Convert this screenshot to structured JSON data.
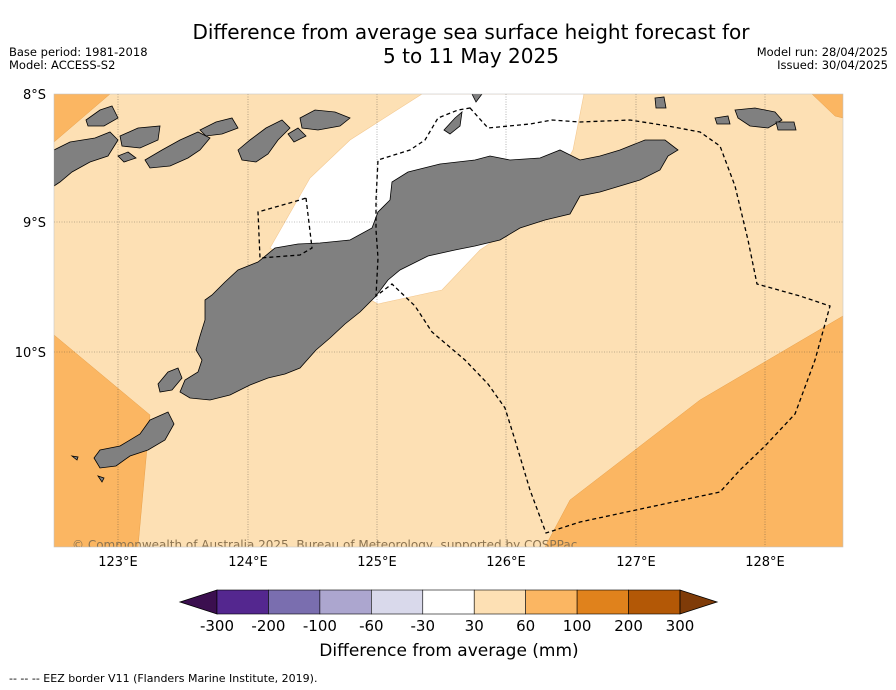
{
  "title_line1": "Difference from average sea surface height forecast for",
  "title_line2": "5 to 11 May 2025",
  "base_period": "Base period: 1981-2018",
  "model": "Model: ACCESS-S2",
  "model_run": "Model run: 28/04/2025",
  "issued": "Issued: 30/04/2025",
  "map": {
    "lat_labels": [
      "8°S",
      "9°S",
      "10°S"
    ],
    "lon_labels": [
      "123°E",
      "124°E",
      "125°E",
      "126°E",
      "127°E",
      "128°E"
    ],
    "copyright": "© Commonwealth of Australia 2025, Bureau of Meteorology, supported by COSPPac"
  },
  "colorbar": {
    "title": "Difference from average (mm)",
    "ticks": [
      "-300",
      "-200",
      "-100",
      "-60",
      "-30",
      "30",
      "60",
      "100",
      "200",
      "300"
    ],
    "colors": [
      "#3b0f4f",
      "#54278f",
      "#7a6eaf",
      "#aca6cf",
      "#d9d9eb",
      "#ffffff",
      "#fde0b4",
      "#fbb662",
      "#e0821c",
      "#b35806",
      "#7f3b08"
    ]
  },
  "footnote": "--  --  -- EEZ border V11 (Flanders Marine Institute, 2019)."
}
